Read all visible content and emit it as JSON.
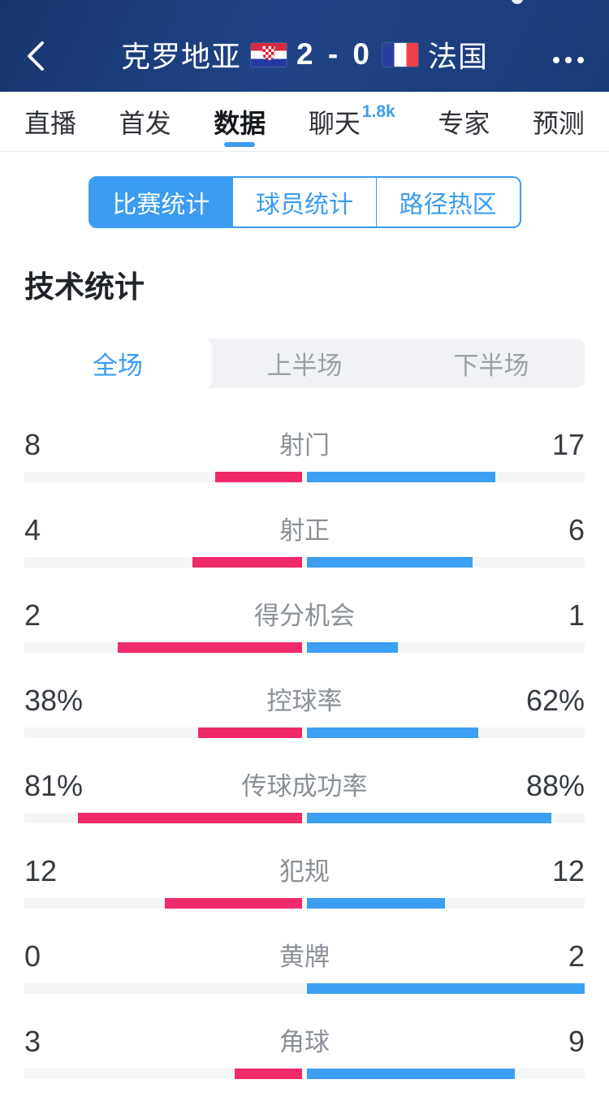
{
  "colors": {
    "header_navy": "#1d3f7e",
    "accent_blue": "#3b9cf1",
    "bar_pink": "#ee2b68",
    "bar_blue": "#3d9ff2"
  },
  "header": {
    "home_team": "克罗地亚",
    "away_team": "法国",
    "score": "2 - 0",
    "home_flag": "croatia-flag",
    "away_flag": "france-flag"
  },
  "tabs": {
    "items": [
      {
        "label": "直播",
        "active": false
      },
      {
        "label": "首发",
        "active": false
      },
      {
        "label": "数据",
        "active": true
      },
      {
        "label": "聊天",
        "active": false,
        "badge": "1.8k"
      },
      {
        "label": "专家",
        "active": false
      },
      {
        "label": "预测",
        "active": false
      }
    ]
  },
  "segmented": {
    "items": [
      {
        "label": "比赛统计",
        "active": true
      },
      {
        "label": "球员统计",
        "active": false
      },
      {
        "label": "路径热区",
        "active": false
      }
    ]
  },
  "section_title": "技术统计",
  "period_tabs": {
    "items": [
      {
        "label": "全场",
        "active": true
      },
      {
        "label": "上半场",
        "active": false
      },
      {
        "label": "下半场",
        "active": false
      }
    ]
  },
  "chart_data": {
    "type": "bar",
    "title": "技术统计 (全场) 克罗地亚 2 - 0 法国",
    "legend": [
      "克罗地亚 (粉)",
      "法国 (蓝)"
    ],
    "rows": [
      {
        "label": "射门",
        "home": 8,
        "away": 17,
        "percent": false
      },
      {
        "label": "射正",
        "home": 4,
        "away": 6,
        "percent": false
      },
      {
        "label": "得分机会",
        "home": 2,
        "away": 1,
        "percent": false
      },
      {
        "label": "控球率",
        "home": 38,
        "away": 62,
        "percent": true
      },
      {
        "label": "传球成功率",
        "home": 81,
        "away": 88,
        "percent": true
      },
      {
        "label": "犯规",
        "home": 12,
        "away": 12,
        "percent": false
      },
      {
        "label": "黄牌",
        "home": 0,
        "away": 2,
        "percent": false
      },
      {
        "label": "角球",
        "home": 3,
        "away": 9,
        "percent": false
      }
    ],
    "layout_hint": "each bar grows from center outward; counts normalized by row sum, percents by 100"
  }
}
